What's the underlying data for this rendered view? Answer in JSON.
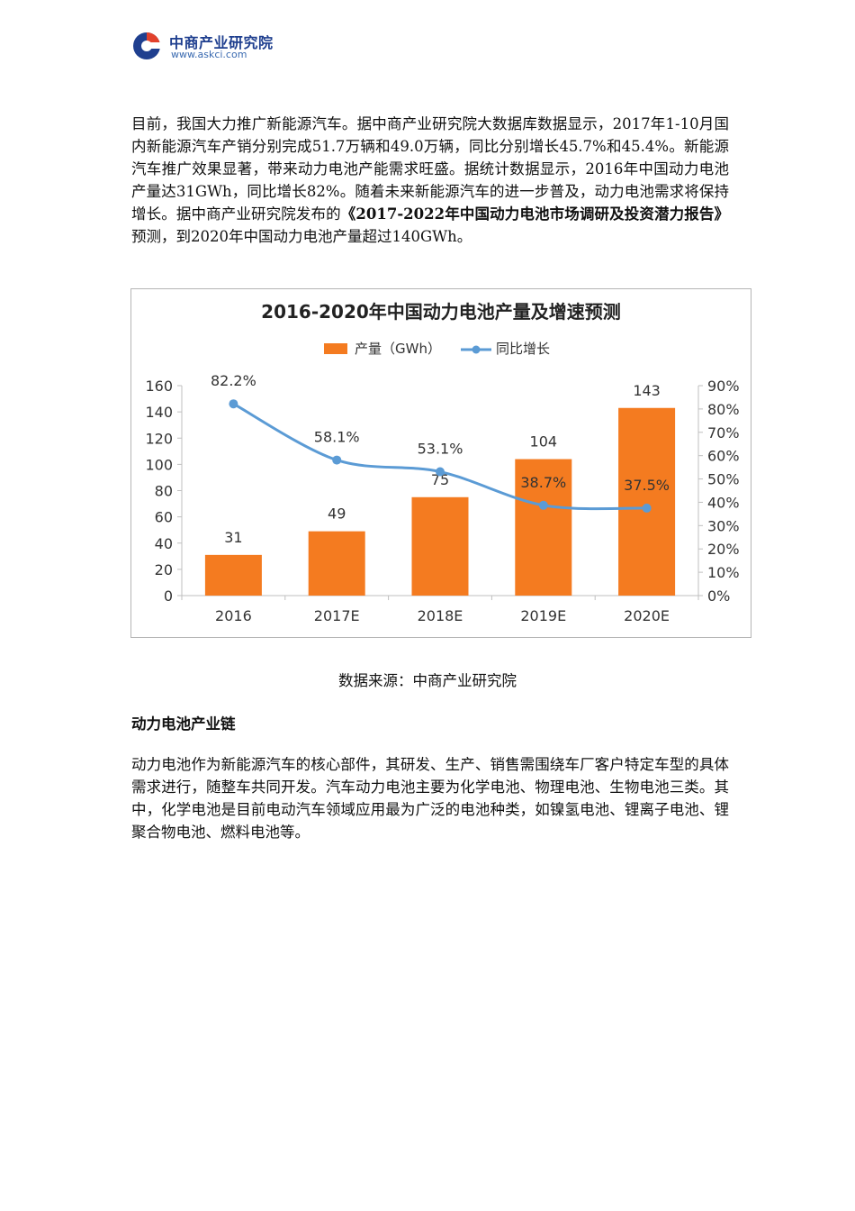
{
  "header": {
    "logo_name": "中商产业研究院",
    "logo_url": "www.askci.com"
  },
  "para1": {
    "before": "目前，我国大力推广新能源汽车。据中商产业研究院大数据库数据显示，2017年1-10月国内新能源汽车产销分别完成51.7万辆和49.0万辆，同比分别增长45.7%和45.4%。新能源汽车推广效果显著，带来动力电池产能需求旺盛。据统计数据显示，2016年中国动力电池产量达31GWh，同比增长82%。随着未来新能源汽车的进一步普及，动力电池需求将保持增长。据中商产业研究院发布的",
    "report_title": "《2017-2022年中国动力电池市场调研及投资潜力报告》",
    "after": "预测，到2020年中国动力电池产量超过140GWh。"
  },
  "chart_data": {
    "type": "bar",
    "title": "2016-2020年中国动力电池产量及增速预测",
    "categories": [
      "2016",
      "2017E",
      "2018E",
      "2019E",
      "2020E"
    ],
    "series": [
      {
        "name": "产量（GWh）",
        "type": "bar",
        "axis": "left",
        "values": [
          31,
          49,
          75,
          104,
          143
        ],
        "labels": [
          "31",
          "49",
          "75",
          "104",
          "143"
        ]
      },
      {
        "name": "同比增长",
        "type": "line",
        "axis": "right",
        "values": [
          82.2,
          58.1,
          53.1,
          38.7,
          37.5
        ],
        "labels": [
          "82.2%",
          "58.1%",
          "53.1%",
          "38.7%",
          "37.5%"
        ]
      }
    ],
    "ylim_left": [
      0,
      160
    ],
    "yticks_left": [
      "0",
      "20",
      "40",
      "60",
      "80",
      "100",
      "120",
      "140",
      "160"
    ],
    "ylim_right": [
      0,
      90
    ],
    "yticks_right": [
      "0%",
      "10%",
      "20%",
      "30%",
      "40%",
      "50%",
      "60%",
      "70%",
      "80%",
      "90%"
    ],
    "grid": false,
    "legend_position": "top-center",
    "colors": {
      "bar": "#f47b20",
      "line": "#5b9bd5"
    }
  },
  "caption": "数据来源：中商产业研究院",
  "section_heading": "动力电池产业链",
  "para2": "动力电池作为新能源汽车的核心部件，其研发、生产、销售需围绕车厂客户特定车型的具体需求进行，随整车共同开发。汽车动力电池主要为化学电池、物理电池、生物电池三类。其中，化学电池是目前电动汽车领域应用最为广泛的电池种类，如镍氢电池、锂离子电池、锂聚合物电池、燃料电池等。"
}
